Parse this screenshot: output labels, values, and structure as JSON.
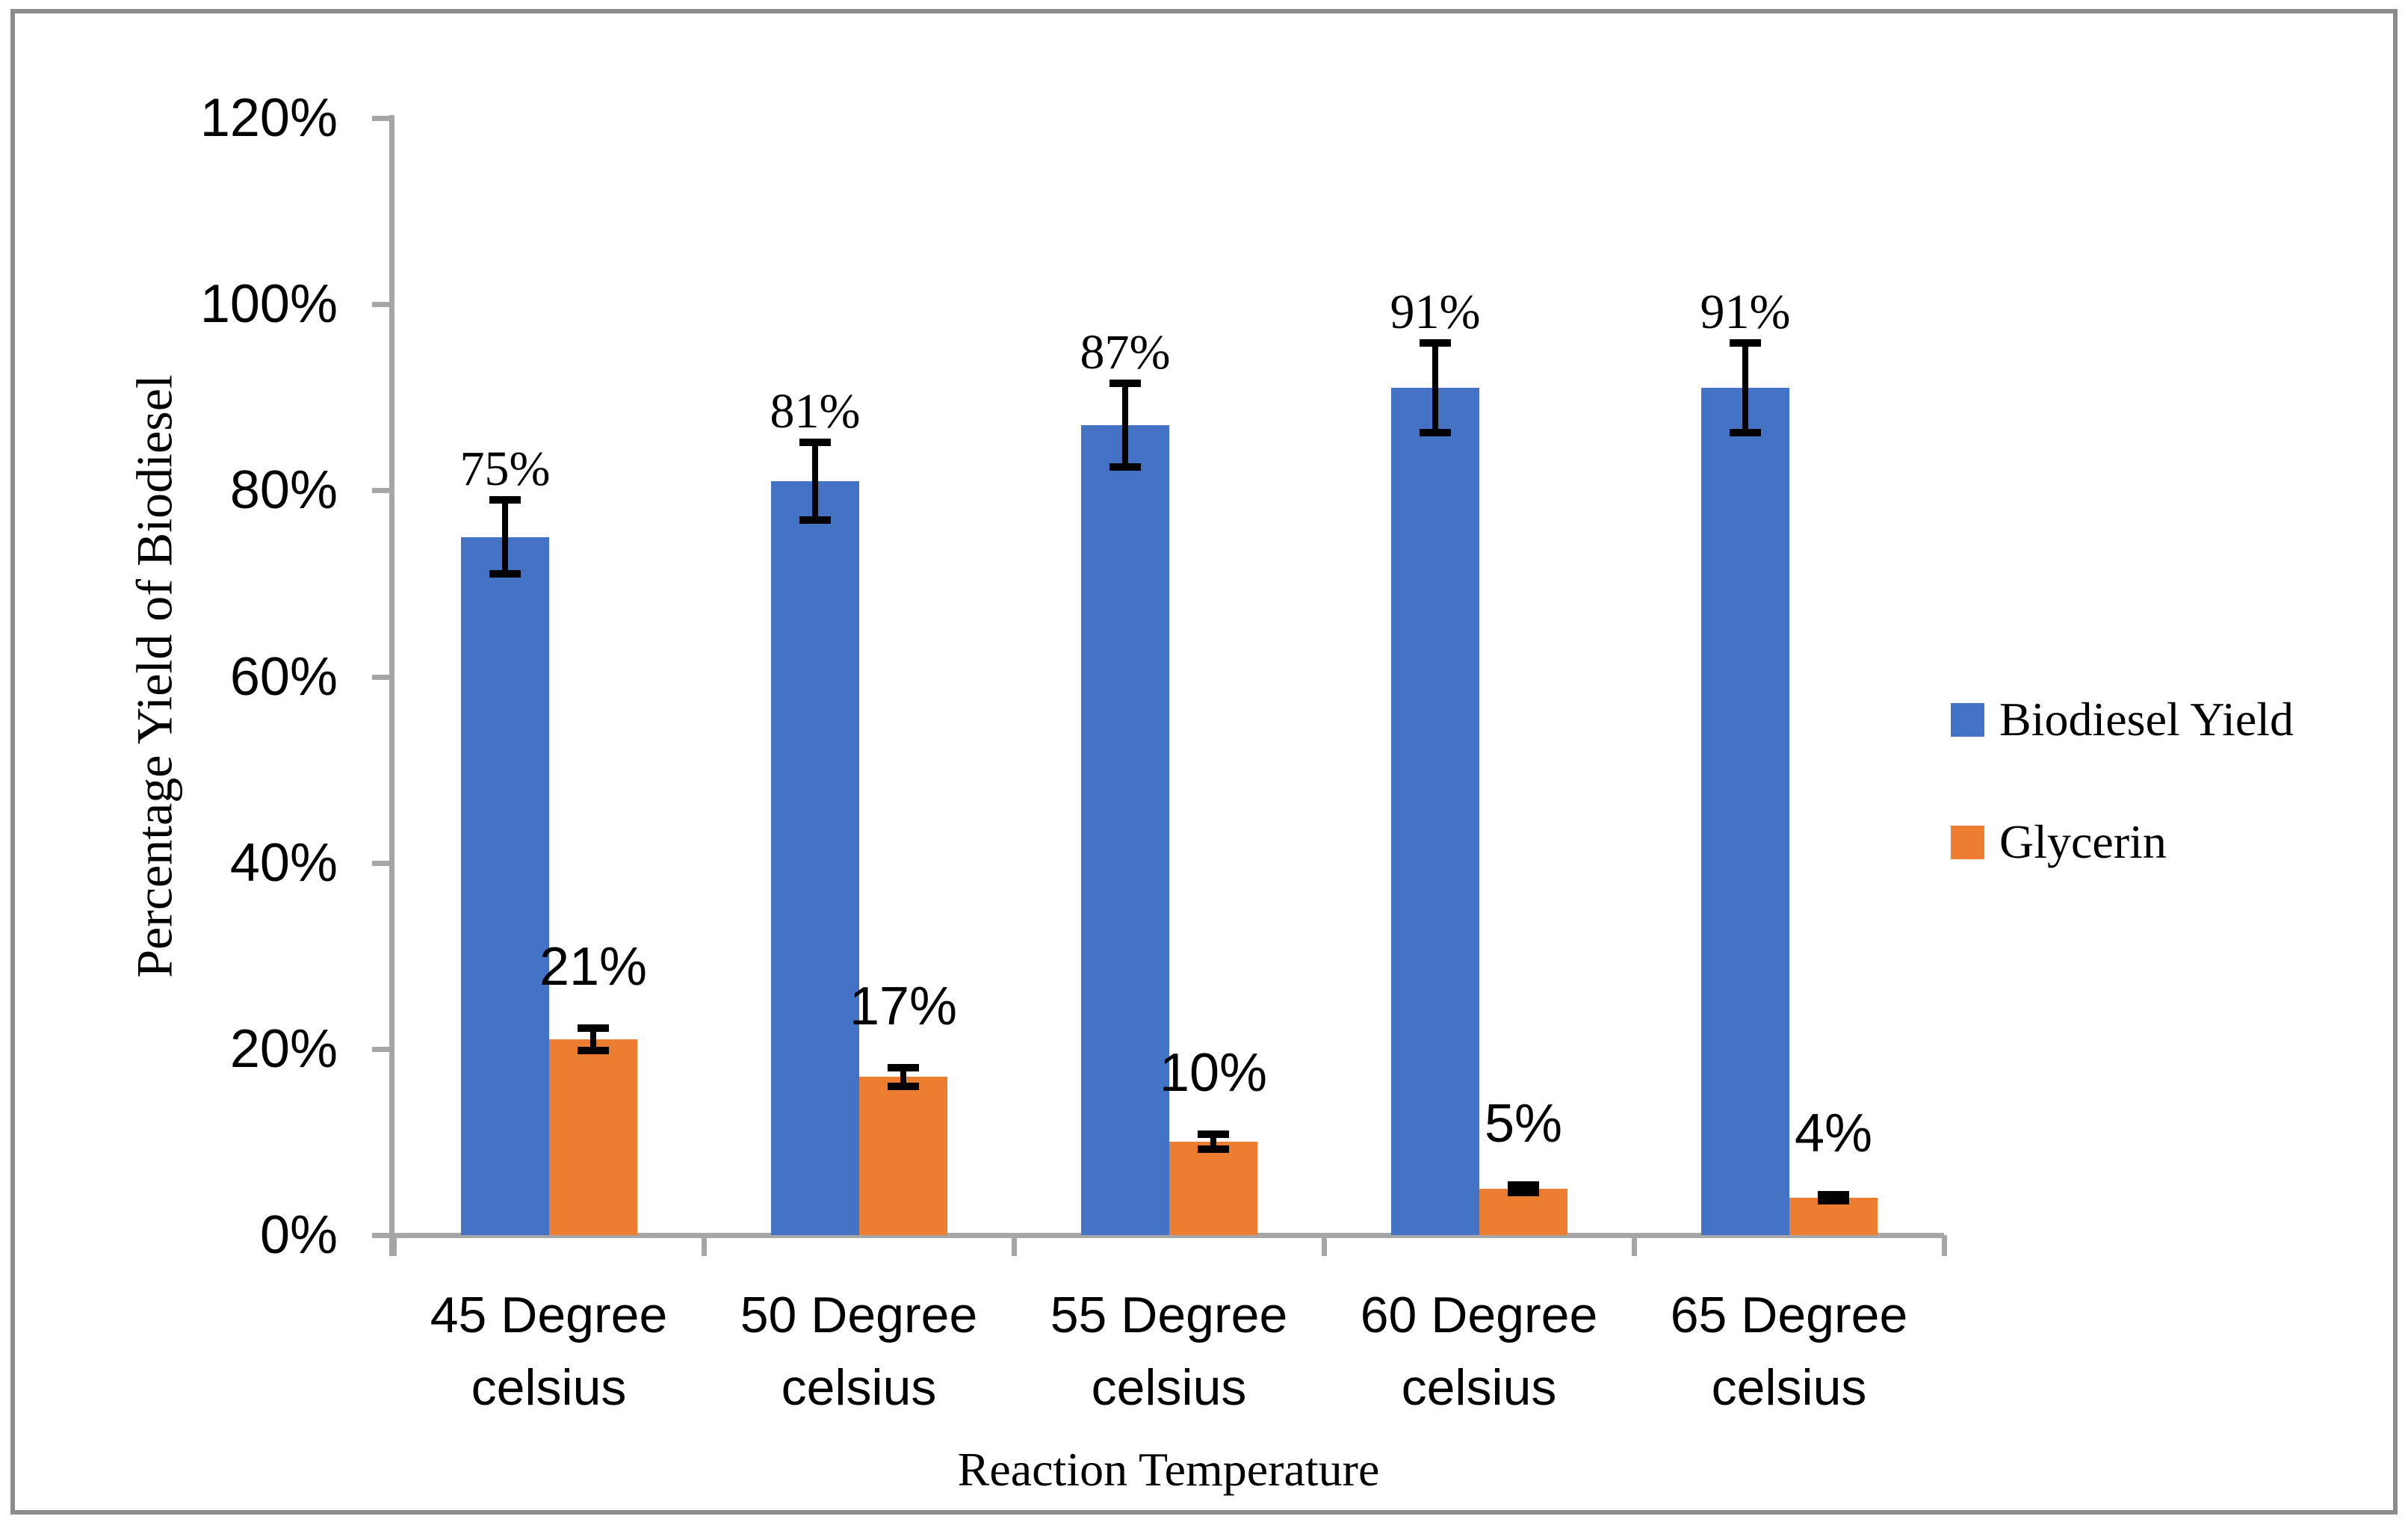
{
  "chart_data": {
    "type": "bar",
    "title": "",
    "xlabel": "Reaction Temperature",
    "ylabel": "Percentage Yield of Biodiesel",
    "categories": [
      "45 Degree celsius",
      "50 Degree celsius",
      "55 Degree celsius",
      "60 Degree celsius",
      "65 Degree celsius"
    ],
    "series": [
      {
        "name": "Biodiesel Yield",
        "color": "#4472C4",
        "values": [
          75,
          81,
          87,
          91,
          91
        ],
        "errors": [
          4,
          4.2,
          4.5,
          4.8,
          4.8
        ],
        "point_labels": [
          "75%",
          "81%",
          "87%",
          "91%",
          "91%"
        ],
        "label_font": "serif"
      },
      {
        "name": "Glycerin",
        "color": "#ED7D31",
        "values": [
          21,
          17,
          10,
          5,
          4
        ],
        "errors": [
          1.2,
          1,
          0.8,
          0.4,
          0.3
        ],
        "point_labels": [
          "21%",
          "17%",
          "10%",
          "5%",
          "4%"
        ],
        "label_font": "sans"
      }
    ],
    "ylim": [
      0,
      120
    ],
    "ytick_step": 20,
    "ytick_labels": [
      "0%",
      "20%",
      "40%",
      "60%",
      "80%",
      "100%",
      "120%"
    ],
    "grid": false,
    "gridlines": "none",
    "error_bars": true,
    "error_bar_color": "#000000",
    "axis_color": "#A6A6A6",
    "frame_border_color": "#8C8C8C",
    "background_color": "#FFFFFF",
    "legend_position": "right",
    "legend": [
      "Biodiesel Yield",
      "Glycerin"
    ]
  }
}
